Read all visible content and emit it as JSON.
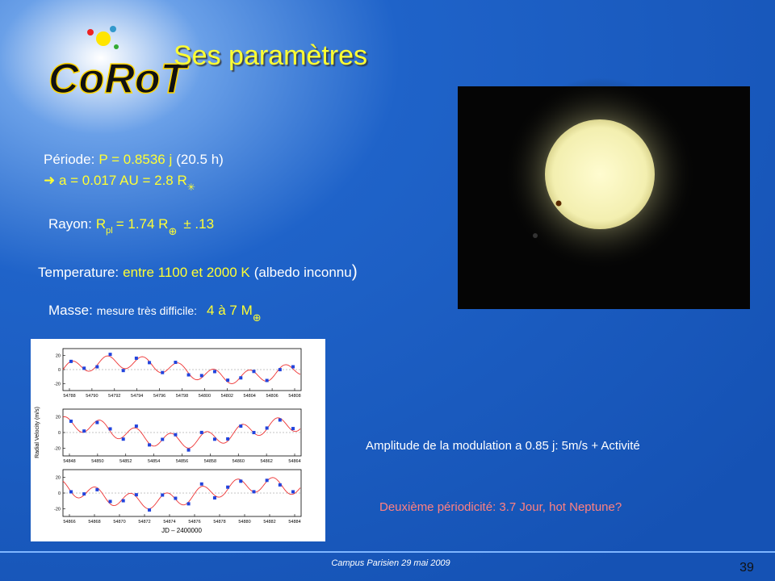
{
  "title": "Ses paramètres",
  "logo": "CoRoT",
  "params": {
    "periode": {
      "label": "Période:",
      "value": "P = 0.8536 j",
      "extra": "(20.5 h)"
    },
    "axe": {
      "value": "➜ a = 0.017 AU =  2.8 R",
      "sub": "✳"
    },
    "rayon": {
      "label": "Rayon:",
      "symbol": "R",
      "symbol_sub": "pl",
      "value": "= 1.74 R",
      "unit_sub": "⊕",
      "error": "± .13"
    },
    "temperature": {
      "label": "Temperature:",
      "value": "entre 1100 et 2000 K",
      "extra": "(albedo inconnu",
      "close": ")"
    },
    "masse": {
      "label": "Masse:",
      "note": "mesure très difficile:",
      "value": "4 à 7 M",
      "unit_sub": "⊕"
    }
  },
  "plot": {
    "y_label": "Radial Velocity (m/s)",
    "x_label": "JD – 2400000",
    "panels": [
      {
        "xticks": [
          54788,
          54790,
          54792,
          54794,
          54796,
          54798,
          54800,
          54802,
          54804,
          54806,
          54808
        ],
        "yticks": [
          20,
          0,
          -20
        ]
      },
      {
        "xticks": [
          54848,
          54850,
          54852,
          54854,
          54856,
          54858,
          54860,
          54862,
          54864
        ],
        "yticks": [
          20,
          0,
          -20
        ]
      },
      {
        "xticks": [
          54866,
          54868,
          54870,
          54872,
          54874,
          54876,
          54878,
          54880,
          54882,
          54884
        ],
        "yticks": [
          20,
          0,
          -20
        ]
      }
    ]
  },
  "notes": {
    "amplitude": "Amplitude de la modulation a 0.85 j: 5m/s + Activité",
    "periodicite": "Deuxième périodicité: 3.7 Jour, hot Neptune?"
  },
  "footer": {
    "text": "Campus Parisien 29 mai 2009",
    "page_number": "39"
  }
}
